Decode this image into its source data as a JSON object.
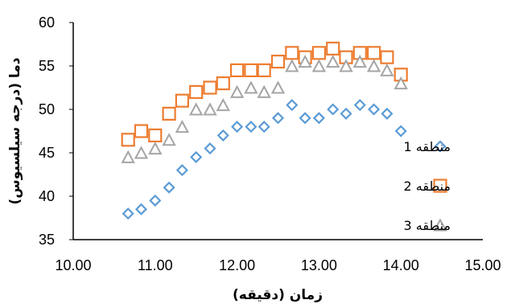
{
  "chart_data": {
    "type": "scatter",
    "title": "",
    "xlabel": "زمان (دقیقه)",
    "ylabel": "دما (درجه سیلسیوس)",
    "xlim": [
      10,
      15
    ],
    "ylim": [
      35,
      60
    ],
    "x_ticks": [
      "10.00",
      "11.00",
      "12.00",
      "13.00",
      "14.00",
      "15.00"
    ],
    "y_ticks": [
      "35",
      "40",
      "45",
      "50",
      "55",
      "60"
    ],
    "grid": false,
    "legend_position": "right",
    "series": [
      {
        "name": "منطقه 1",
        "marker": "diamond",
        "color": "#5b9bd5",
        "x": [
          10.67,
          10.83,
          11.0,
          11.17,
          11.33,
          11.5,
          11.67,
          11.83,
          12.0,
          12.17,
          12.33,
          12.5,
          12.67,
          12.83,
          13.0,
          13.17,
          13.33,
          13.5,
          13.67,
          13.83,
          14.0
        ],
        "y": [
          38.0,
          38.5,
          39.5,
          41.0,
          43.0,
          44.5,
          45.5,
          47.0,
          48.0,
          48.0,
          48.0,
          49.0,
          50.5,
          49.0,
          49.0,
          50.0,
          49.5,
          50.5,
          50.0,
          49.5,
          47.5
        ]
      },
      {
        "name": "منطقه 2",
        "marker": "square",
        "color": "#ed7d31",
        "x": [
          10.67,
          10.83,
          11.0,
          11.17,
          11.33,
          11.5,
          11.67,
          11.83,
          12.0,
          12.17,
          12.33,
          12.5,
          12.67,
          12.83,
          13.0,
          13.17,
          13.33,
          13.5,
          13.67,
          13.83,
          14.0
        ],
        "y": [
          46.5,
          47.5,
          47.0,
          49.5,
          51.0,
          52.0,
          52.5,
          53.0,
          54.5,
          54.5,
          54.5,
          55.5,
          56.5,
          56.0,
          56.5,
          57.0,
          56.0,
          56.5,
          56.5,
          56.0,
          54.0
        ]
      },
      {
        "name": "منطقه 3",
        "marker": "triangle",
        "color": "#a5a5a5",
        "x": [
          10.67,
          10.83,
          11.0,
          11.17,
          11.33,
          11.5,
          11.67,
          11.83,
          12.0,
          12.17,
          12.33,
          12.5,
          12.67,
          12.83,
          13.0,
          13.17,
          13.33,
          13.5,
          13.67,
          13.83,
          14.0
        ],
        "y": [
          44.5,
          45.0,
          45.5,
          46.5,
          48.0,
          50.0,
          50.0,
          50.5,
          52.0,
          52.5,
          52.0,
          52.5,
          55.0,
          55.5,
          55.0,
          55.5,
          55.0,
          55.5,
          55.0,
          54.5,
          53.0
        ]
      }
    ]
  }
}
